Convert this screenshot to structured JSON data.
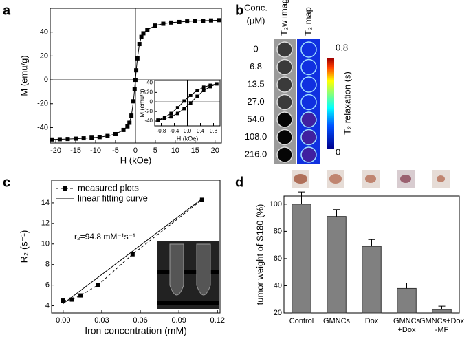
{
  "panel_labels": [
    "a",
    "b",
    "c",
    "d"
  ],
  "chart_data": [
    {
      "type": "line",
      "xlabel": "H (kOe)",
      "ylabel": "M (emu/g)",
      "xlim": [
        -21.4,
        21.6
      ],
      "ylim": [
        -53,
        60
      ],
      "xticks": [
        -20,
        -15,
        -10,
        -5,
        0,
        5,
        10,
        15,
        20
      ],
      "yticks": [
        -40,
        -20,
        0,
        20,
        40
      ],
      "zero_lines": true,
      "series": [
        {
          "color": "#000000",
          "marker": "square",
          "x": [
            -21,
            -19,
            -17,
            -15,
            -13,
            -11,
            -9,
            -7,
            -5,
            -3,
            -2,
            -1.5,
            -1,
            -0.5,
            -0.2,
            0,
            0.2,
            0.5,
            1,
            1.5,
            2,
            3,
            5,
            7,
            9,
            11,
            13,
            15,
            17,
            19,
            21
          ],
          "values": [
            -50,
            -49.8,
            -49.6,
            -49.3,
            -49,
            -48.5,
            -48,
            -47,
            -45.5,
            -42,
            -39,
            -36,
            -30,
            -18,
            -8,
            0,
            8,
            18,
            30,
            36,
            39,
            42,
            45.5,
            47,
            48,
            48.5,
            49,
            49.3,
            49.6,
            49.8,
            50
          ]
        }
      ]
    },
    {
      "type": "line",
      "xlabel": "H (kOe)",
      "ylabel": "M (emu/g)",
      "xlim": [
        -1.0,
        1.0
      ],
      "ylim": [
        -50,
        45
      ],
      "xticks": [
        -0.8,
        -0.4,
        {
          "value": 0,
          "label": "0.0"
        },
        0.4,
        0.8
      ],
      "yticks": [
        -40,
        -20,
        0,
        20,
        40
      ],
      "zero_lines": true,
      "series": [
        {
          "color": "#000000",
          "marker": "square",
          "x": [
            -0.9,
            -0.7,
            -0.5,
            -0.3,
            -0.1,
            0.1,
            0.3,
            0.5,
            0.7,
            0.9
          ],
          "values": [
            -38,
            -32,
            -24,
            -12,
            2,
            14,
            24,
            31,
            35,
            38
          ]
        },
        {
          "color": "#000000",
          "marker": "square",
          "x": [
            -0.9,
            -0.7,
            -0.5,
            -0.3,
            -0.1,
            0.1,
            0.3,
            0.5,
            0.7,
            0.9
          ],
          "values": [
            -38,
            -35,
            -31,
            -24,
            -14,
            -2,
            12,
            24,
            32,
            38
          ]
        }
      ]
    },
    {
      "type": "line",
      "xlabel": "Iron concentration (mM)",
      "ylabel": "R₂ (s⁻¹)",
      "xlim": [
        -0.009,
        0.122
      ],
      "ylim": [
        3.3,
        16.2
      ],
      "xticks": [
        {
          "value": 0,
          "label": "0.00"
        },
        0.03,
        0.06,
        0.09,
        {
          "value": 0.12,
          "label": "0.12"
        }
      ],
      "yticks": [
        4,
        6,
        8,
        10,
        12,
        14
      ],
      "annotation": "r₂=94.8 mM⁻¹s⁻¹",
      "legend": "top-left",
      "series": [
        {
          "name": "measured plots",
          "color": "#000000",
          "marker": "square",
          "dash": true,
          "x": [
            0,
            0.0068,
            0.0135,
            0.027,
            0.054,
            0.108
          ],
          "values": [
            4.5,
            4.6,
            5.0,
            6.0,
            9.0,
            14.3
          ]
        },
        {
          "name": "linear fitting curve",
          "color": "#000000",
          "x": [
            0,
            0.108
          ],
          "values": [
            4.2,
            14.4
          ]
        }
      ]
    },
    {
      "type": "bar",
      "ylabel": "tumor weight of S180 (%)",
      "ylim": [
        20,
        106
      ],
      "yticks": [
        20,
        40,
        60,
        80,
        100
      ],
      "color": "#808080",
      "categories": [
        "Control",
        "GMNCs",
        "Dox",
        "GMNCs\n+Dox",
        "GMNCs+Dox\n-MF"
      ],
      "values": [
        100,
        91,
        69,
        38,
        22.5
      ],
      "errors": [
        9,
        5,
        5,
        4,
        2.5
      ]
    }
  ],
  "panel_b": {
    "conc_title": "Conc.",
    "conc_unit": "(μM)",
    "col_image": "T₂w image",
    "col_map": "T₂ map",
    "concentrations": [
      "0",
      "6.8",
      "13.5",
      "27.0",
      "54.0",
      "108.0",
      "216.0"
    ],
    "colorbar": {
      "max": "0.8",
      "min": "0",
      "label": "T₂ relaxation (s)"
    }
  }
}
